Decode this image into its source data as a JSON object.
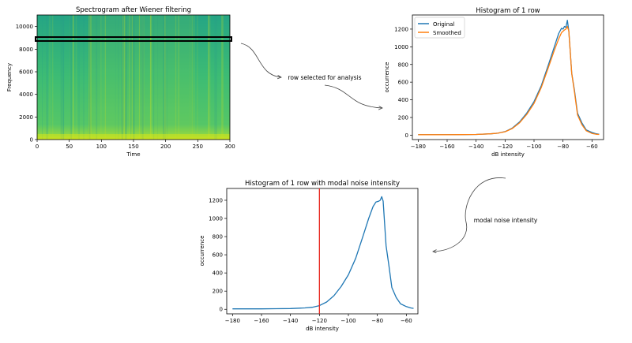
{
  "annotations": {
    "row_selected": "row selected for analysis",
    "modal_noise": "modal noise intensity"
  },
  "colors": {
    "original": "#1f77b4",
    "smoothed": "#ff7f0e",
    "modal_line": "#e8261f",
    "spec_low": "#b8de29",
    "spec_mid": "#44bf70",
    "spec_high": "#22a784"
  },
  "chart_data": [
    {
      "type": "heatmap",
      "title": "Spectrogram after Wiener filtering",
      "xlabel": "Time",
      "ylabel": "Frequency",
      "xlim": [
        0,
        300
      ],
      "ylim": [
        0,
        11025
      ],
      "x_ticks": [
        0,
        50,
        100,
        150,
        200,
        250,
        300
      ],
      "y_ticks": [
        0,
        2000,
        4000,
        6000,
        8000,
        10000
      ],
      "selected_row_frequency": 8900
    },
    {
      "type": "line",
      "title": "Histogram of 1 row",
      "xlabel": "dB intensity",
      "ylabel": "occurrence",
      "xlim": [
        -184,
        -52
      ],
      "ylim": [
        -50,
        1360
      ],
      "x_ticks": [
        -180,
        -160,
        -140,
        -120,
        -100,
        -80,
        -60
      ],
      "y_ticks": [
        0,
        200,
        400,
        600,
        800,
        1000,
        1200
      ],
      "legend_position": "top-left",
      "series": [
        {
          "name": "Original",
          "x": [
            -180,
            -170,
            -160,
            -150,
            -140,
            -130,
            -125,
            -120,
            -115,
            -110,
            -105,
            -100,
            -95,
            -90,
            -86,
            -83,
            -81,
            -80,
            -79,
            -78,
            -77,
            -76,
            -75,
            -74,
            -72,
            -70,
            -67,
            -64,
            -60,
            -57,
            -55
          ],
          "values": [
            5,
            5,
            5,
            6,
            8,
            15,
            22,
            40,
            80,
            150,
            250,
            380,
            560,
            800,
            1000,
            1150,
            1210,
            1200,
            1230,
            1220,
            1300,
            1180,
            950,
            700,
            500,
            250,
            140,
            60,
            30,
            15,
            10
          ]
        },
        {
          "name": "Smoothed",
          "x": [
            -180,
            -170,
            -160,
            -150,
            -140,
            -130,
            -125,
            -120,
            -115,
            -110,
            -105,
            -100,
            -95,
            -90,
            -86,
            -83,
            -81,
            -79,
            -78,
            -77,
            -76,
            -75,
            -74,
            -72,
            -70,
            -67,
            -64,
            -60,
            -57,
            -55
          ],
          "values": [
            5,
            5,
            5,
            6,
            8,
            15,
            22,
            38,
            75,
            140,
            235,
            360,
            540,
            770,
            960,
            1090,
            1160,
            1190,
            1200,
            1230,
            1180,
            950,
            700,
            480,
            230,
            120,
            50,
            20,
            10,
            8
          ]
        }
      ]
    },
    {
      "type": "line",
      "title": "Histogram of 1 row with modal noise intensity",
      "xlabel": "dB intensity",
      "ylabel": "occurrence",
      "xlim": [
        -184,
        -52
      ],
      "ylim": [
        -50,
        1330
      ],
      "x_ticks": [
        -180,
        -160,
        -140,
        -120,
        -100,
        -80,
        -60
      ],
      "y_ticks": [
        0,
        200,
        400,
        600,
        800,
        1000,
        1200
      ],
      "modal_noise_db": -120,
      "series": [
        {
          "x": [
            -180,
            -170,
            -160,
            -150,
            -140,
            -130,
            -125,
            -120,
            -115,
            -110,
            -105,
            -100,
            -95,
            -90,
            -86,
            -83,
            -81,
            -79,
            -78,
            -77,
            -76,
            -75,
            -74,
            -72,
            -70,
            -67,
            -64,
            -60,
            -57,
            -55
          ],
          "values": [
            5,
            5,
            5,
            6,
            8,
            15,
            22,
            40,
            80,
            150,
            250,
            380,
            560,
            800,
            1000,
            1130,
            1180,
            1190,
            1200,
            1240,
            1190,
            950,
            700,
            480,
            240,
            130,
            60,
            30,
            15,
            10
          ]
        }
      ]
    }
  ]
}
